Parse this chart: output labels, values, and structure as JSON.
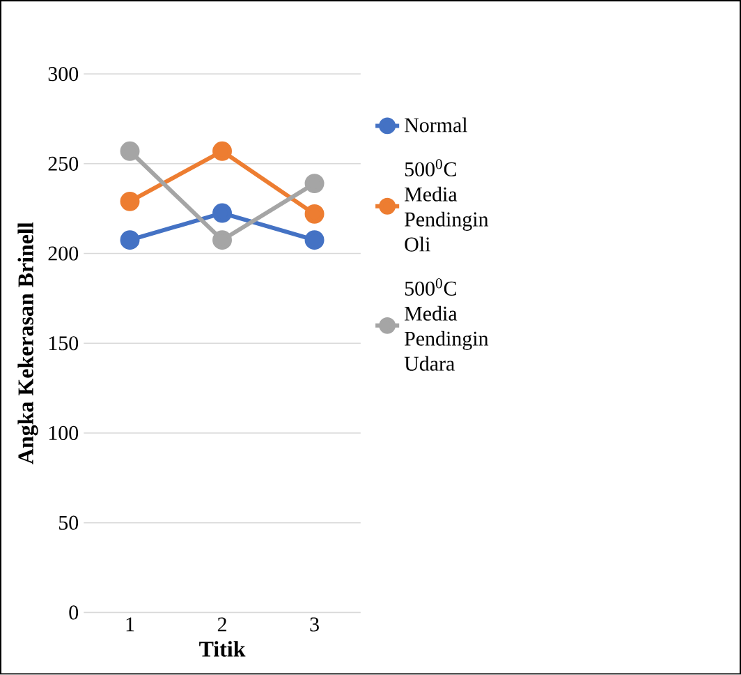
{
  "chart_data": {
    "type": "line",
    "xlabel": "Titik",
    "ylabel": "Angka Kekerasan Brinell",
    "categories": [
      "1",
      "2",
      "3"
    ],
    "series": [
      {
        "name": "Normal",
        "color": "#4472c4",
        "values": [
          207.5,
          222.5,
          207.5
        ]
      },
      {
        "name": "500$^{0}$C Media Pendingin Oli",
        "color": "#ed7d31",
        "values": [
          229,
          257,
          222
        ]
      },
      {
        "name": "500$^{0}$C Media Pendingin Udara",
        "color": "#a5a5a5",
        "values": [
          257,
          207.5,
          239
        ]
      }
    ],
    "ylim": [
      0,
      300
    ],
    "yticks": [
      0,
      50,
      100,
      150,
      200,
      250,
      300
    ],
    "grid": "y",
    "legend": "right",
    "marker": "circle",
    "line_style": "solid"
  }
}
